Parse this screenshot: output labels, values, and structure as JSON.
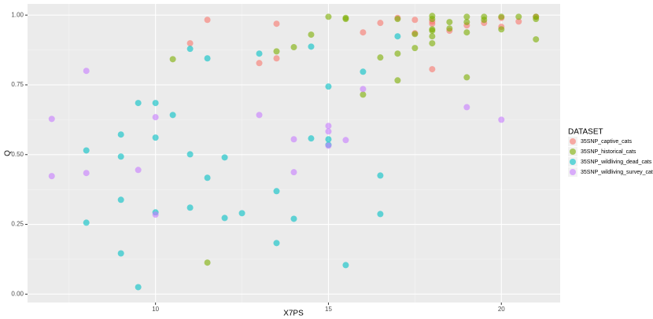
{
  "chart_data": {
    "type": "scatter",
    "x_label": "X7PS",
    "y_label": "Q",
    "xlim": [
      6.3,
      21.7
    ],
    "ylim": [
      -0.03,
      1.04
    ],
    "xticks": [
      10,
      15,
      20
    ],
    "yticks": [
      {
        "value": 0,
        "label": "0.00"
      },
      {
        "value": 0.25,
        "label": "0.25"
      },
      {
        "value": 0.5,
        "label": "0.50"
      },
      {
        "value": 0.75,
        "label": "0.75"
      },
      {
        "value": 1,
        "label": "1.00"
      }
    ],
    "x_minor_ticks": [
      7.5,
      12.5,
      17.5
    ],
    "y_minor_ticks": [
      0.125,
      0.375,
      0.625,
      0.875
    ],
    "grid": true,
    "legend_title": "DATASET",
    "legend_position": "right",
    "series": [
      {
        "name": "35SNP_captive_cats",
        "color": "#F8766D",
        "x": [
          11,
          11.5,
          13,
          13.5,
          13.5,
          16,
          16.5,
          17,
          17.5,
          17.5,
          18,
          18,
          18,
          18.5,
          19,
          19.5,
          20,
          20,
          20.5,
          21
        ],
        "values": [
          0.899,
          0.983,
          0.828,
          0.969,
          0.845,
          0.938,
          0.972,
          0.99,
          0.935,
          0.983,
          0.806,
          0.977,
          0.969,
          0.944,
          0.963,
          0.972,
          0.99,
          0.958,
          0.977,
          0.994
        ]
      },
      {
        "name": "35SNP_historical_cats",
        "color": "#7CAE00",
        "x": [
          10.5,
          11.5,
          13.5,
          14,
          14.5,
          15,
          15.5,
          15.5,
          16,
          16.5,
          17,
          17,
          17,
          17.5,
          17.5,
          18,
          18,
          18,
          18,
          18,
          18,
          18.5,
          18.5,
          19,
          19,
          19,
          19,
          19.5,
          19.5,
          20,
          20,
          20.5,
          21,
          21,
          21
        ],
        "values": [
          0.842,
          0.113,
          0.87,
          0.885,
          0.93,
          0.994,
          0.99,
          0.986,
          0.715,
          0.848,
          0.766,
          0.862,
          0.986,
          0.882,
          0.932,
          0.899,
          0.924,
          0.949,
          0.944,
          0.986,
          0.997,
          0.975,
          0.952,
          0.777,
          0.938,
          0.975,
          0.994,
          0.994,
          0.983,
          0.949,
          0.994,
          0.994,
          0.913,
          0.994,
          0.986
        ]
      },
      {
        "name": "35SNP_wildliving_dead_cats",
        "color": "#00BFC4",
        "x": [
          8,
          8,
          9,
          9,
          9,
          9,
          9.5,
          9.5,
          10,
          10,
          10,
          10.5,
          11,
          11,
          11,
          11.5,
          11.5,
          12,
          12,
          12.5,
          13,
          13.5,
          13.5,
          14,
          14.5,
          14.5,
          15,
          15,
          15,
          15.5,
          16,
          16.5,
          16.5,
          17
        ],
        "values": [
          0.515,
          0.256,
          0.572,
          0.493,
          0.338,
          0.146,
          0.685,
          0.025,
          0.685,
          0.561,
          0.293,
          0.642,
          0.879,
          0.501,
          0.31,
          0.845,
          0.417,
          0.49,
          0.273,
          0.29,
          0.862,
          0.369,
          0.183,
          0.27,
          0.887,
          0.558,
          0.744,
          0.555,
          0.535,
          0.104,
          0.797,
          0.425,
          0.287,
          0.924
        ]
      },
      {
        "name": "35SNP_wildliving_survey_cats",
        "color": "#C77CFF",
        "x": [
          7,
          7,
          8,
          8,
          9.5,
          10,
          10,
          13,
          14,
          14,
          15,
          15,
          15,
          15.5,
          16,
          19,
          20
        ],
        "values": [
          0.628,
          0.423,
          0.8,
          0.434,
          0.445,
          0.634,
          0.285,
          0.642,
          0.555,
          0.437,
          0.603,
          0.583,
          0.532,
          0.552,
          0.735,
          0.67,
          0.625
        ]
      }
    ]
  }
}
